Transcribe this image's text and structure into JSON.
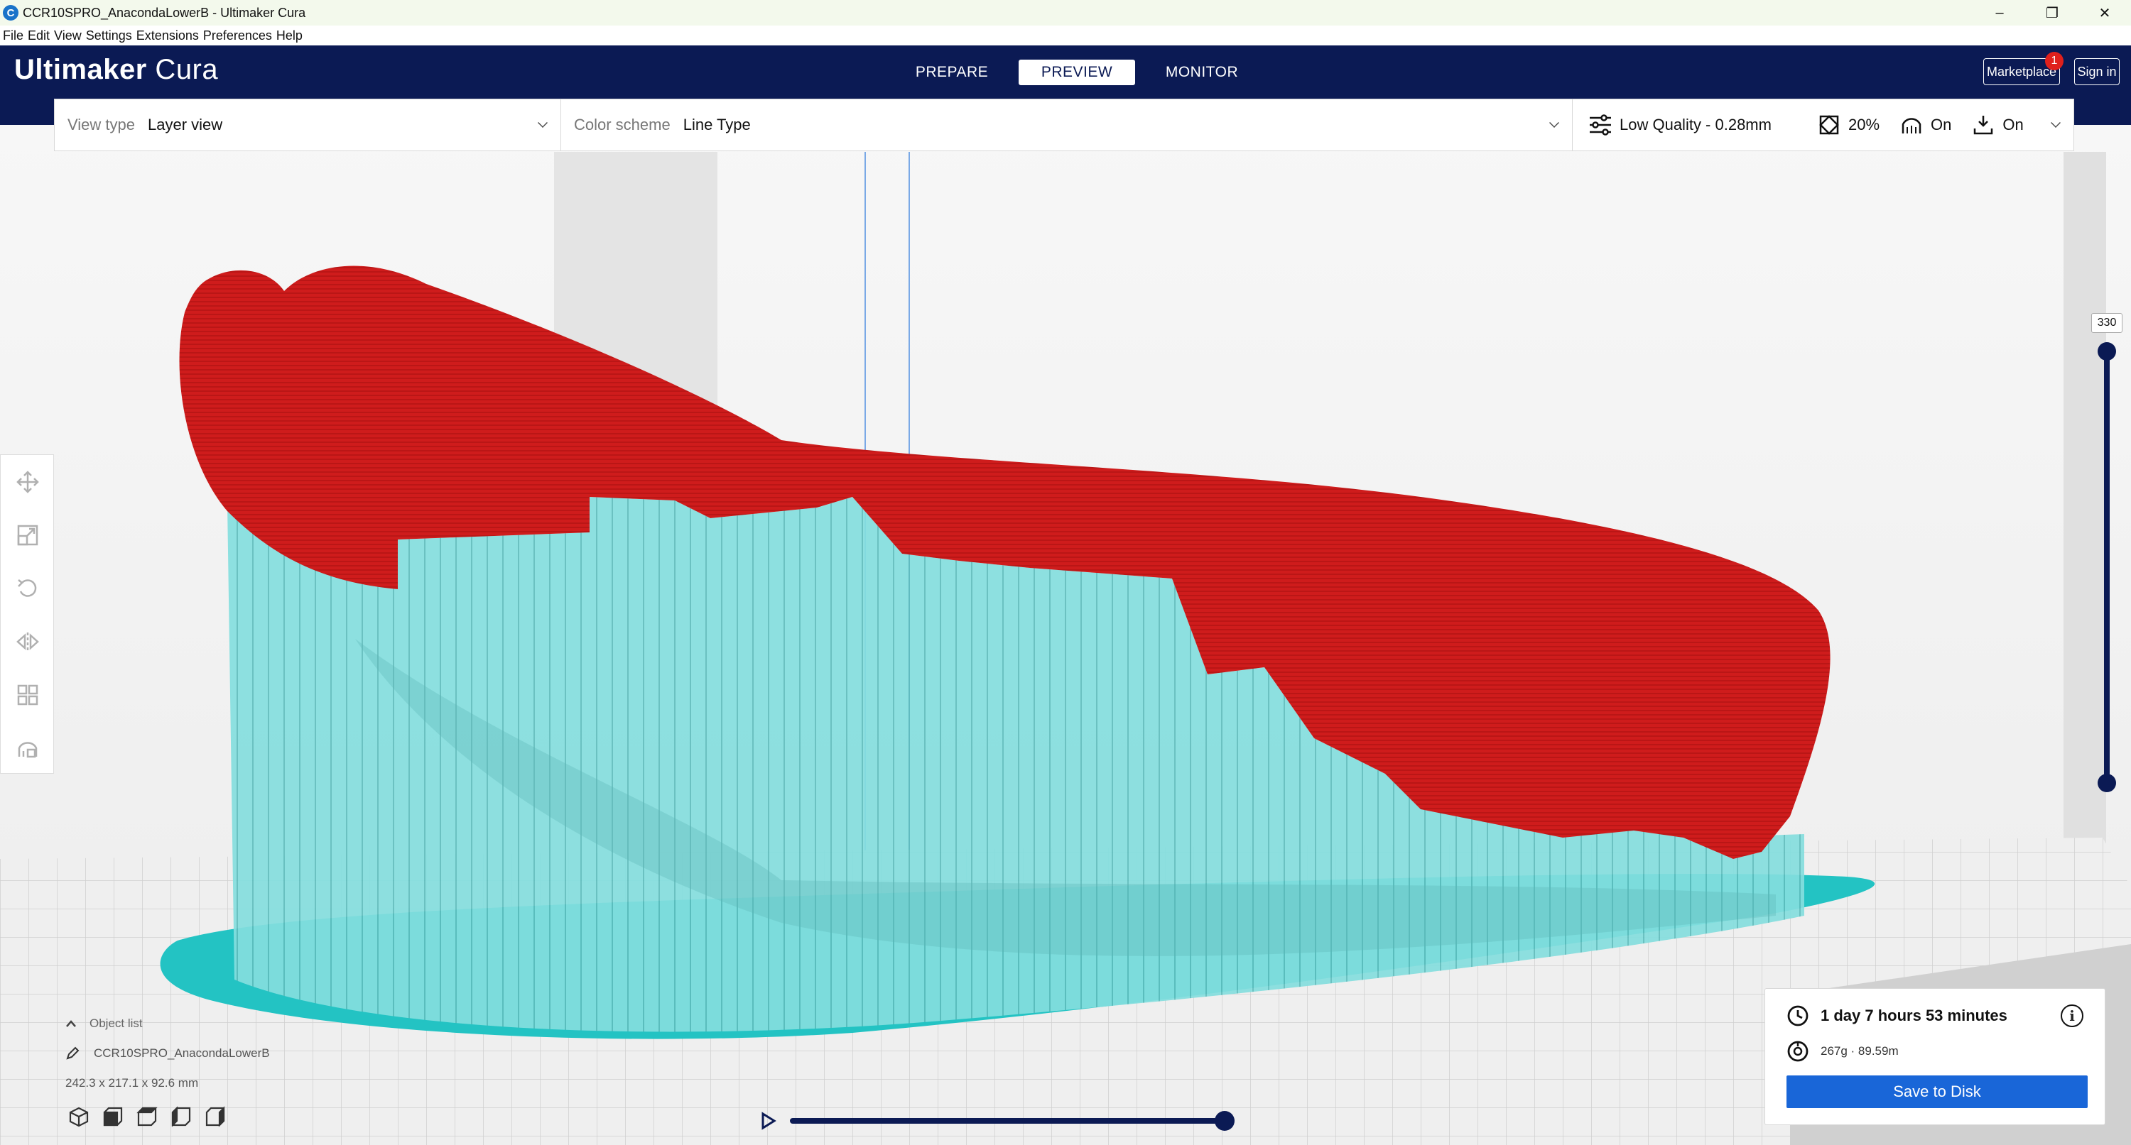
{
  "window": {
    "title": "CCR10SPRO_AnacondaLowerB - Ultimaker Cura",
    "app_icon": "C",
    "minimize": "–",
    "maximize": "❐",
    "close": "✕"
  },
  "menu": [
    "File",
    "Edit",
    "View",
    "Settings",
    "Extensions",
    "Preferences",
    "Help"
  ],
  "header": {
    "brand_bold": "Ultimaker",
    "brand_light": " Cura",
    "tabs": [
      {
        "label": "PREPARE",
        "active": false
      },
      {
        "label": "PREVIEW",
        "active": true
      },
      {
        "label": "MONITOR",
        "active": false
      }
    ],
    "marketplace": "Marketplace",
    "marketplace_badge": "1",
    "sign_in": "Sign in"
  },
  "viewbar": {
    "view_type_label": "View type",
    "view_type_value": "Layer view",
    "color_scheme_label": "Color scheme",
    "color_scheme_value": "Line Type",
    "profile": "Low Quality - 0.28mm",
    "infill": "20%",
    "support": "On",
    "adhesion": "On"
  },
  "layer_slider": {
    "max_label": "330"
  },
  "object_list": {
    "header": "Object list",
    "object_name": "CCR10SPRO_AnacondaLowerB",
    "dimensions": "242.3 x 217.1 x 92.6 mm"
  },
  "summary": {
    "print_time": "1 day 7 hours 53 minutes",
    "material": "267g · 89.59m",
    "save_button": "Save to Disk"
  },
  "colors": {
    "header_bg": "#0b1a54",
    "model_red": "#cf1c1c",
    "support_cyan": "#7fdcdc",
    "adhesion_teal": "#23c3c3",
    "primary_button": "#1966d8"
  },
  "icons": [
    "move-icon",
    "scale-icon",
    "rotate-icon",
    "mirror-icon",
    "per-model-settings-icon",
    "support-blocker-icon",
    "play-icon",
    "clock-icon",
    "spool-icon",
    "info-icon"
  ]
}
